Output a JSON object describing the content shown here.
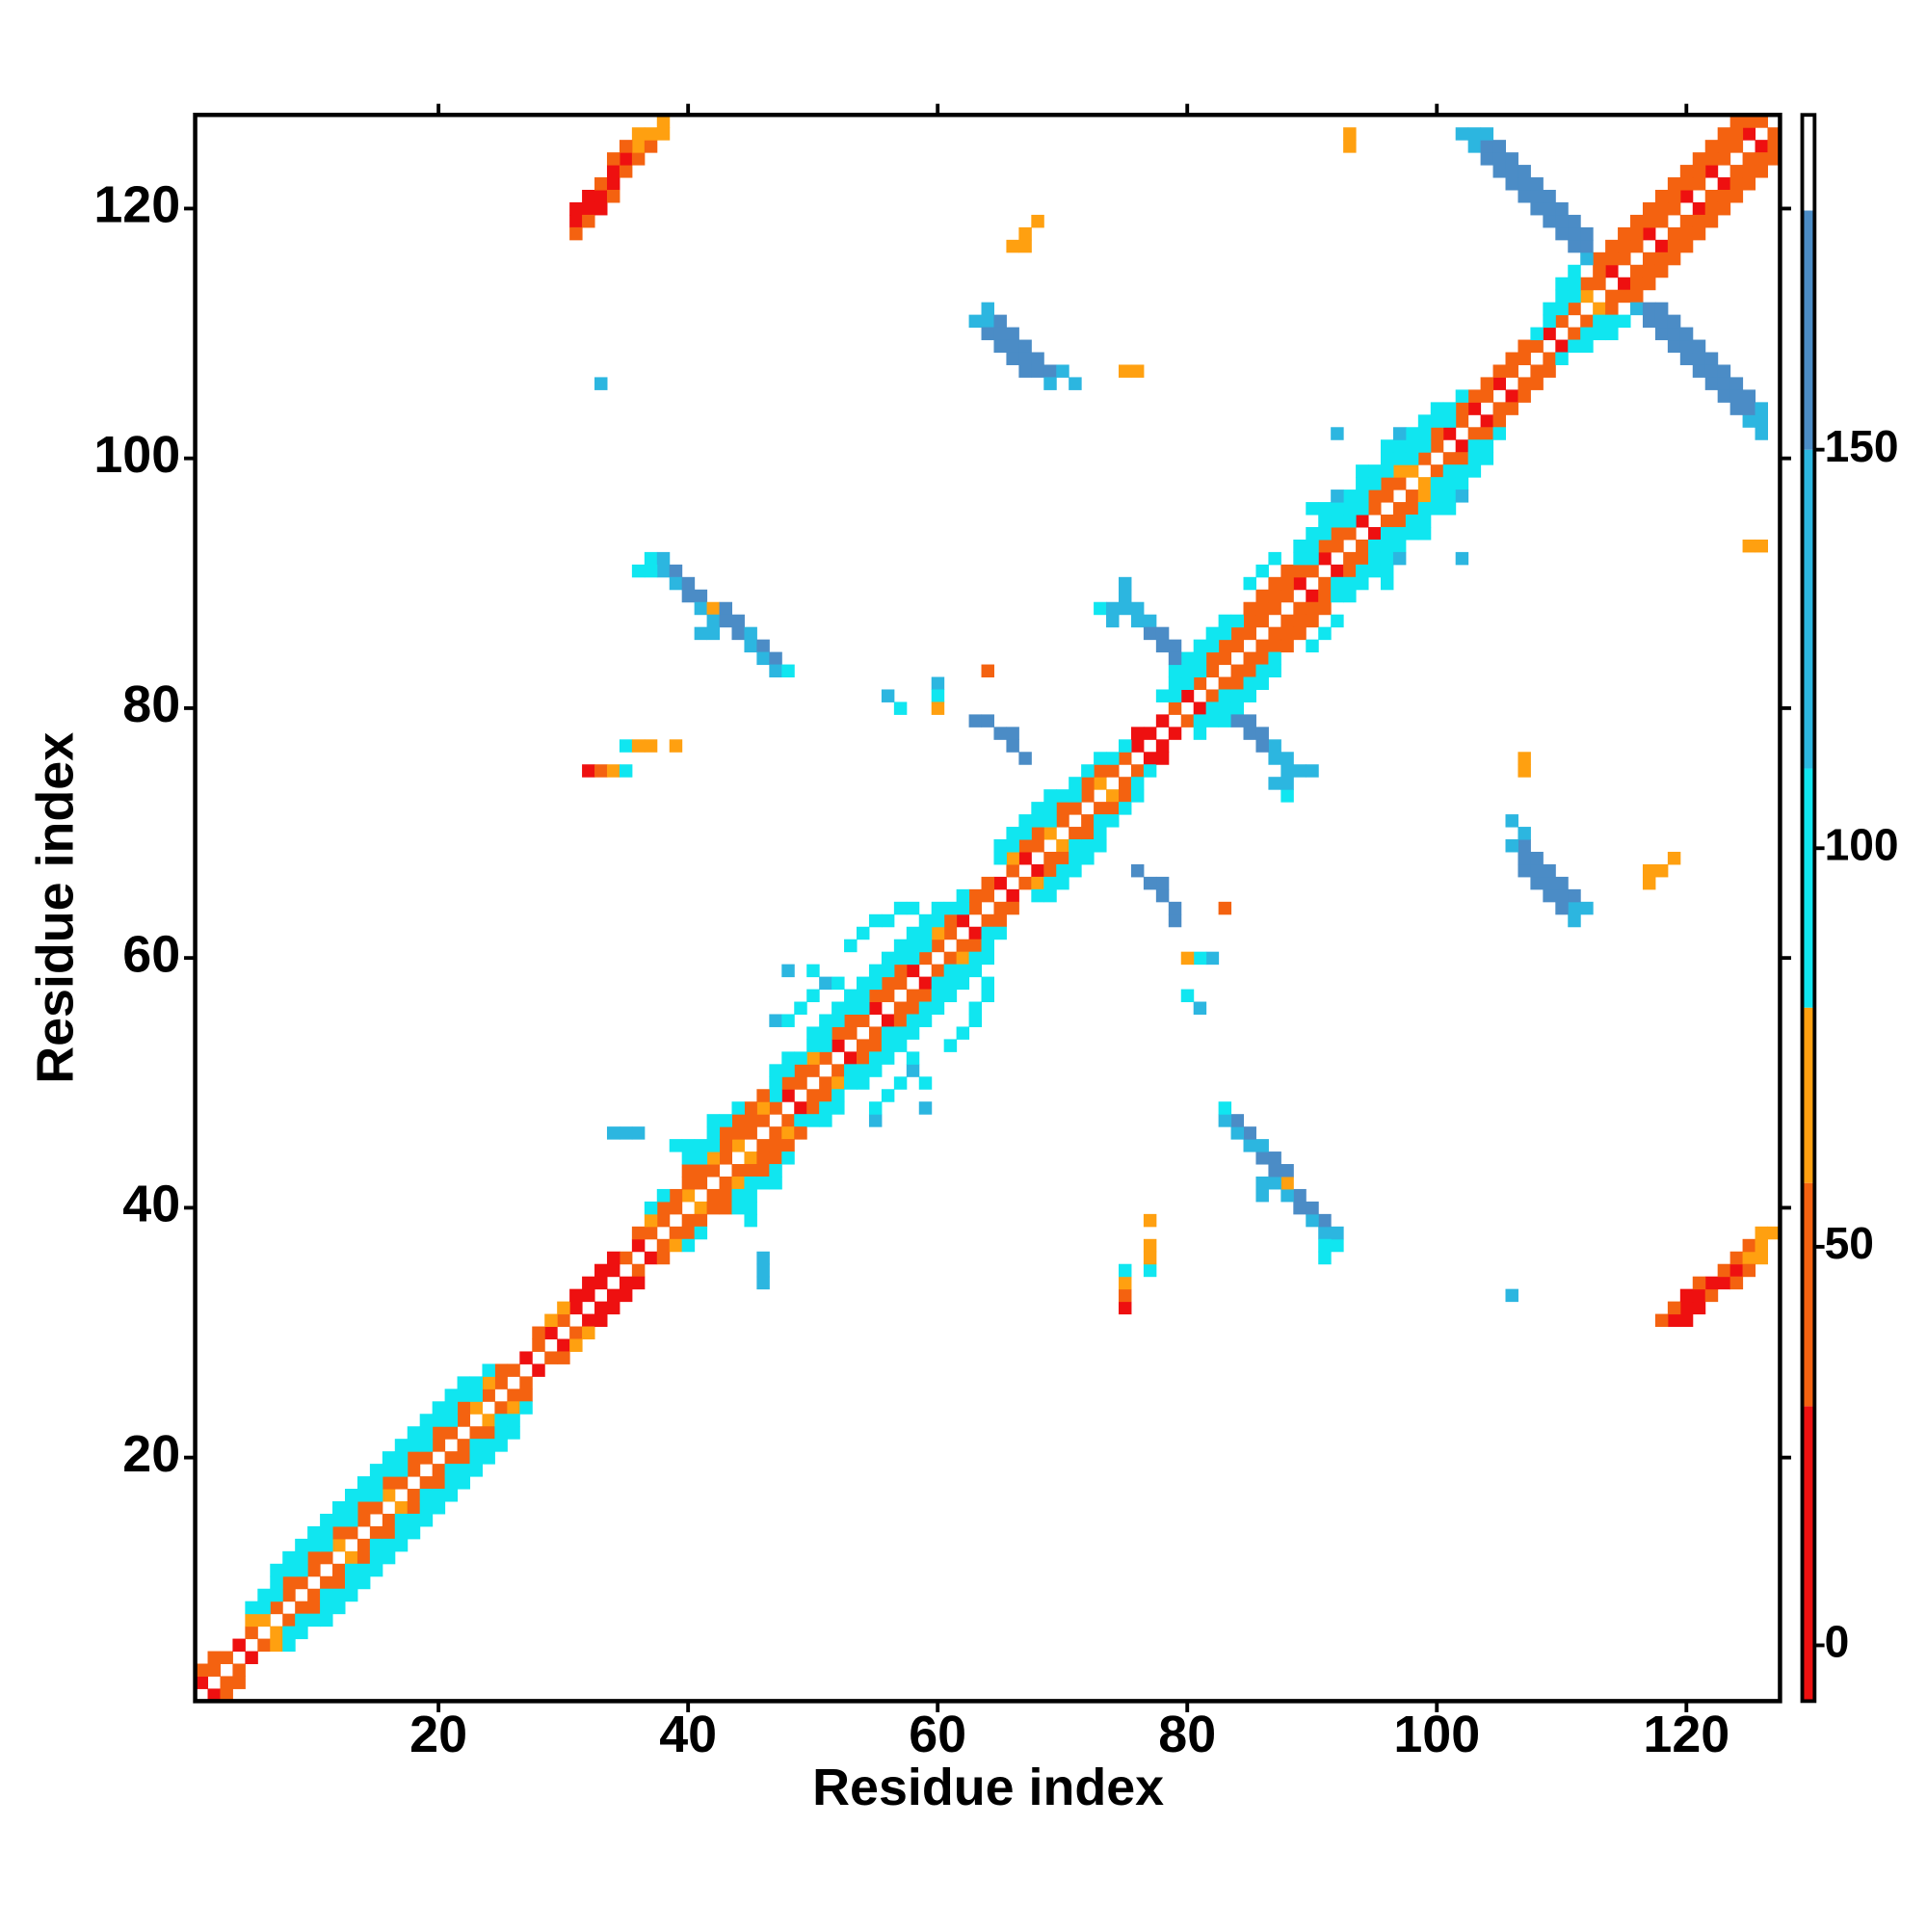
{
  "chart_data": {
    "type": "contact-map",
    "x_label": "Residue index",
    "y_label": "Residue index",
    "xlim": [
      0.5,
      127.5
    ],
    "ylim": [
      0.5,
      127.5
    ],
    "xticks": [
      20,
      40,
      60,
      80,
      100,
      120
    ],
    "yticks": [
      20,
      40,
      60,
      80,
      100,
      120
    ],
    "colorscale": {
      "lim": [
        -7,
        192
      ],
      "ticks": [
        0,
        50,
        100,
        150
      ],
      "breaks": [
        -7,
        30,
        58,
        80,
        110,
        150,
        180,
        192
      ],
      "colors": [
        "#ee1010",
        "#f46210",
        "#ffa010",
        "#10e6f0",
        "#2cb6e0",
        "#4b8cc6",
        "#ffffff"
      ]
    },
    "bands": [
      {
        "offset": 1,
        "start": 1,
        "values": [
          10,
          40,
          40,
          10,
          40,
          65,
          40,
          40,
          40,
          40,
          40,
          65,
          40,
          40,
          40,
          65,
          40,
          40,
          40,
          40,
          40,
          40,
          65,
          40,
          40,
          40,
          10,
          40,
          10,
          40,
          10,
          10,
          10,
          10,
          40,
          10,
          40,
          40,
          40,
          65,
          40,
          40,
          40,
          65,
          40,
          40,
          40,
          10,
          40,
          40,
          40,
          10,
          40,
          40,
          10,
          40,
          40,
          10,
          40,
          40,
          40,
          10,
          40,
          40,
          10,
          40,
          10,
          40,
          65,
          40,
          40,
          40,
          65,
          40,
          40,
          10,
          10,
          10,
          40,
          10,
          40,
          40,
          40,
          40,
          40,
          40,
          40,
          40,
          10,
          40,
          10,
          40,
          40,
          10,
          40,
          40,
          40,
          65,
          40,
          40,
          10,
          40,
          10,
          40,
          10,
          40,
          40,
          40,
          10,
          40,
          40,
          65,
          40,
          10,
          40,
          40,
          10,
          40,
          40,
          10,
          40,
          10,
          40,
          40,
          10,
          40
        ]
      },
      {
        "offset": 2,
        "start": 1,
        "values": [
          40,
          40,
          null,
          null,
          65,
          90,
          90,
          40,
          90,
          40,
          90,
          40,
          90,
          40,
          90,
          40,
          90,
          40,
          90,
          40,
          90,
          40,
          90,
          65,
          40,
          null,
          null,
          40,
          65,
          65,
          10,
          10,
          10,
          10,
          null,
          40,
          65,
          40,
          40,
          40,
          40,
          65,
          40,
          40,
          40,
          65,
          90,
          40,
          40,
          65,
          90,
          40,
          40,
          90,
          40,
          40,
          40,
          90,
          90,
          65,
          40,
          90,
          40,
          40,
          null,
          65,
          40,
          40,
          90,
          40,
          90,
          40,
          40,
          90,
          90,
          10,
          null,
          null,
          90,
          90,
          90,
          40,
          40,
          40,
          40,
          40,
          40,
          40,
          40,
          90,
          40,
          40,
          90,
          90,
          40,
          40,
          65,
          90,
          90,
          40,
          90,
          40,
          40,
          40,
          40,
          40,
          40,
          90,
          90,
          90,
          90,
          40,
          40,
          40,
          40,
          40,
          40,
          40,
          40,
          40,
          40,
          40,
          40,
          40,
          40
        ]
      },
      {
        "offset": 3,
        "start": 1,
        "values": [
          null,
          null,
          null,
          null,
          90,
          90,
          90,
          90,
          90,
          90,
          90,
          90,
          90,
          90,
          90,
          90,
          90,
          90,
          90,
          90,
          90,
          90,
          90,
          90,
          null,
          null,
          null,
          null,
          null,
          null,
          null,
          null,
          null,
          null,
          null,
          null,
          90,
          90,
          null,
          40,
          90,
          90,
          40,
          40,
          40,
          40,
          90,
          90,
          90,
          90,
          90,
          90,
          90,
          90,
          90,
          90,
          90,
          90,
          90,
          90,
          90,
          90,
          null,
          null,
          90,
          90,
          90,
          90,
          90,
          90,
          90,
          90,
          90,
          null,
          null,
          null,
          null,
          90,
          90,
          90,
          90,
          90,
          90,
          90,
          40,
          40,
          40,
          40,
          90,
          90,
          90,
          90,
          90,
          90,
          90,
          90,
          90,
          90,
          90,
          90,
          90,
          90,
          null,
          null,
          null,
          null,
          null,
          null,
          90,
          90,
          90,
          null,
          40,
          40,
          40,
          40,
          40,
          40,
          40,
          40,
          40,
          40,
          40,
          40
        ]
      },
      {
        "offset": 4,
        "start": 1,
        "values": [
          null,
          null,
          null,
          null,
          null,
          null,
          90,
          90,
          90,
          90,
          90,
          90,
          90,
          90,
          90,
          90,
          90,
          90,
          90,
          90,
          90,
          90,
          null,
          null,
          null,
          null,
          null,
          null,
          null,
          null,
          null,
          null,
          null,
          null,
          null,
          null,
          null,
          null,
          null,
          null,
          90,
          90,
          90,
          90,
          null,
          null,
          90,
          90,
          null,
          90,
          90,
          90,
          90,
          90,
          90,
          90,
          90,
          90,
          90,
          90,
          null,
          null,
          null,
          null,
          90,
          90,
          90,
          90,
          90,
          null,
          null,
          null,
          null,
          null,
          null,
          null,
          null,
          null,
          90,
          90,
          90,
          90,
          90,
          null,
          null,
          null,
          null,
          null,
          90,
          90,
          90,
          90,
          90,
          90,
          90,
          90,
          90,
          90,
          90,
          90,
          null,
          null,
          null,
          null,
          null,
          null,
          null,
          null,
          null,
          null,
          null,
          null,
          null,
          null,
          null,
          null,
          null,
          null,
          null,
          null,
          null,
          null,
          null
        ]
      }
    ],
    "cells": [
      [
        31,
        119,
        10
      ],
      [
        31,
        120,
        10
      ],
      [
        32,
        120,
        10
      ],
      [
        32,
        121,
        10
      ],
      [
        33,
        121,
        10
      ],
      [
        33,
        122,
        40
      ],
      [
        34,
        122,
        10
      ],
      [
        34,
        123,
        10
      ],
      [
        35,
        123,
        40
      ],
      [
        35,
        124,
        10
      ],
      [
        36,
        124,
        40
      ],
      [
        36,
        125,
        65
      ],
      [
        37,
        125,
        40
      ],
      [
        37,
        126,
        65
      ],
      [
        38,
        126,
        65
      ],
      [
        38,
        127,
        65
      ],
      [
        32,
        119,
        40
      ],
      [
        33,
        120,
        10
      ],
      [
        34,
        121,
        40
      ],
      [
        31,
        118,
        40
      ],
      [
        36,
        126,
        65
      ],
      [
        35,
        125,
        40
      ],
      [
        34,
        124,
        40
      ],
      [
        102,
        126,
        130
      ],
      [
        103,
        125,
        130
      ],
      [
        103,
        126,
        130
      ],
      [
        104,
        124,
        165
      ],
      [
        104,
        125,
        165
      ],
      [
        104,
        126,
        130
      ],
      [
        105,
        123,
        165
      ],
      [
        105,
        124,
        165
      ],
      [
        105,
        125,
        165
      ],
      [
        106,
        122,
        165
      ],
      [
        106,
        123,
        165
      ],
      [
        106,
        124,
        165
      ],
      [
        107,
        121,
        165
      ],
      [
        107,
        122,
        165
      ],
      [
        107,
        123,
        165
      ],
      [
        108,
        120,
        165
      ],
      [
        108,
        121,
        165
      ],
      [
        108,
        122,
        165
      ],
      [
        109,
        119,
        165
      ],
      [
        109,
        120,
        165
      ],
      [
        109,
        121,
        165
      ],
      [
        110,
        118,
        165
      ],
      [
        110,
        119,
        165
      ],
      [
        110,
        120,
        165
      ],
      [
        111,
        117,
        165
      ],
      [
        111,
        118,
        165
      ],
      [
        111,
        119,
        165
      ],
      [
        112,
        116,
        130
      ],
      [
        112,
        117,
        165
      ],
      [
        112,
        118,
        165
      ],
      [
        63,
        111,
        130
      ],
      [
        64,
        112,
        130
      ],
      [
        64,
        111,
        130
      ],
      [
        64,
        110,
        165
      ],
      [
        65,
        111,
        165
      ],
      [
        65,
        110,
        165
      ],
      [
        65,
        109,
        165
      ],
      [
        66,
        110,
        165
      ],
      [
        66,
        109,
        165
      ],
      [
        66,
        108,
        165
      ],
      [
        67,
        109,
        165
      ],
      [
        67,
        108,
        165
      ],
      [
        67,
        107,
        165
      ],
      [
        68,
        108,
        165
      ],
      [
        68,
        107,
        165
      ],
      [
        69,
        107,
        165
      ],
      [
        69,
        106,
        130
      ],
      [
        70,
        107,
        130
      ],
      [
        71,
        106,
        130
      ],
      [
        75,
        107,
        65
      ],
      [
        76,
        107,
        65
      ],
      [
        33,
        106,
        130
      ],
      [
        66,
        117,
        65
      ],
      [
        67,
        117,
        65
      ],
      [
        67,
        118,
        65
      ],
      [
        68,
        119,
        65
      ],
      [
        37,
        92,
        90
      ],
      [
        38,
        92,
        130
      ],
      [
        38,
        91,
        130
      ],
      [
        36,
        91,
        90
      ],
      [
        37,
        91,
        90
      ],
      [
        39,
        91,
        165
      ],
      [
        39,
        90,
        130
      ],
      [
        40,
        90,
        165
      ],
      [
        40,
        89,
        165
      ],
      [
        41,
        89,
        165
      ],
      [
        41,
        88,
        130
      ],
      [
        42,
        88,
        65
      ],
      [
        42,
        87,
        130
      ],
      [
        43,
        88,
        165
      ],
      [
        43,
        87,
        165
      ],
      [
        44,
        87,
        165
      ],
      [
        44,
        86,
        165
      ],
      [
        45,
        86,
        130
      ],
      [
        45,
        85,
        130
      ],
      [
        46,
        85,
        165
      ],
      [
        46,
        84,
        130
      ],
      [
        47,
        84,
        165
      ],
      [
        47,
        83,
        130
      ],
      [
        48,
        83,
        90
      ],
      [
        41,
        86,
        130
      ],
      [
        42,
        86,
        130
      ],
      [
        73,
        88,
        90
      ],
      [
        74,
        88,
        130
      ],
      [
        75,
        90,
        130
      ],
      [
        75,
        88,
        130
      ],
      [
        76,
        88,
        130
      ],
      [
        76,
        87,
        130
      ],
      [
        77,
        87,
        130
      ],
      [
        77,
        86,
        165
      ],
      [
        78,
        86,
        165
      ],
      [
        78,
        85,
        165
      ],
      [
        79,
        85,
        165
      ],
      [
        79,
        84,
        165
      ],
      [
        74,
        87,
        130
      ],
      [
        75,
        89,
        130
      ],
      [
        63,
        79,
        165
      ],
      [
        64,
        79,
        165
      ],
      [
        65,
        78,
        165
      ],
      [
        66,
        78,
        165
      ],
      [
        66,
        77,
        165
      ],
      [
        67,
        76,
        165
      ],
      [
        56,
        81,
        130
      ],
      [
        57,
        80,
        90
      ],
      [
        60,
        82,
        130
      ],
      [
        60,
        81,
        90
      ],
      [
        60,
        80,
        65
      ],
      [
        64,
        83,
        40
      ],
      [
        32,
        75,
        10
      ],
      [
        33,
        75,
        40
      ],
      [
        34,
        75,
        65
      ],
      [
        35,
        77,
        90
      ],
      [
        36,
        77,
        65
      ],
      [
        37,
        77,
        65
      ],
      [
        35,
        75,
        90
      ],
      [
        39,
        77,
        65
      ],
      [
        34,
        46,
        130
      ],
      [
        35,
        46,
        130
      ],
      [
        36,
        46,
        130
      ],
      [
        93,
        125,
        65
      ],
      [
        93,
        126,
        65
      ],
      [
        92,
        102,
        130
      ],
      [
        47,
        55,
        130
      ],
      [
        48,
        55,
        90
      ],
      [
        49,
        56,
        90
      ],
      [
        50,
        57,
        90
      ],
      [
        51,
        58,
        130
      ],
      [
        52,
        58,
        90
      ],
      [
        50,
        59,
        90
      ],
      [
        53,
        61,
        90
      ],
      [
        54,
        62,
        90
      ],
      [
        55,
        63,
        90
      ],
      [
        56,
        63,
        90
      ],
      [
        57,
        64,
        90
      ],
      [
        58,
        64,
        90
      ],
      [
        48,
        59,
        130
      ],
      [
        40,
        44,
        90
      ],
      [
        39,
        45,
        90
      ],
      [
        40,
        45,
        90
      ],
      [
        42,
        47,
        90
      ],
      [
        85,
        90,
        90
      ],
      [
        86,
        91,
        90
      ],
      [
        87,
        92,
        90
      ],
      [
        90,
        96,
        90
      ],
      [
        91,
        96,
        90
      ],
      [
        92,
        97,
        130
      ],
      [
        94,
        99,
        90
      ],
      [
        96,
        101,
        90
      ],
      [
        97,
        102,
        130
      ],
      [
        110,
        114,
        90
      ],
      [
        111,
        115,
        90
      ]
    ]
  }
}
